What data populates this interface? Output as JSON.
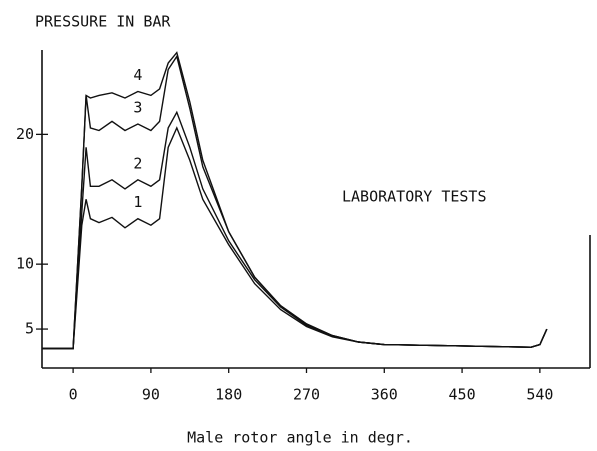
{
  "chart_data": {
    "type": "line",
    "title": "PRESSURE IN BAR",
    "annotation": "LABORATORY TESTS",
    "xlabel": "Male rotor angle in degr.",
    "x": [
      -36,
      -5,
      0,
      10,
      15,
      20,
      30,
      45,
      60,
      75,
      90,
      100,
      110,
      120,
      135,
      150,
      180,
      210,
      240,
      270,
      300,
      330,
      360,
      450,
      530,
      540,
      548
    ],
    "series": [
      {
        "name": "1",
        "color": "#111111",
        "values": [
          3.5,
          3.5,
          3.5,
          13,
          15,
          13.5,
          13.2,
          13.6,
          12.8,
          13.5,
          13,
          13.5,
          19,
          20.5,
          18,
          15,
          11.5,
          8.5,
          6.5,
          5.2,
          4.4,
          4,
          3.8,
          3.7,
          3.6,
          3.8,
          5
        ]
      },
      {
        "name": "2",
        "color": "#111111",
        "values": [
          3.5,
          3.5,
          3.5,
          14,
          19,
          16,
          16,
          16.5,
          15.8,
          16.5,
          16,
          16.5,
          20.5,
          21.7,
          19,
          15.8,
          11.8,
          8.8,
          6.7,
          5.3,
          4.5,
          4,
          3.8,
          3.7,
          3.6,
          3.8,
          5
        ]
      },
      {
        "name": "3",
        "color": "#111111",
        "values": [
          3.5,
          3.5,
          3.5,
          16,
          23,
          20.5,
          20.3,
          21,
          20.3,
          20.8,
          20.3,
          21,
          25,
          26,
          22,
          17.5,
          12.5,
          9,
          6.8,
          5.4,
          4.5,
          4,
          3.8,
          3.7,
          3.6,
          3.8,
          5
        ]
      },
      {
        "name": "4",
        "color": "#111111",
        "values": [
          3.5,
          3.5,
          3.5,
          16,
          23,
          22.8,
          23,
          23.2,
          22.8,
          23.3,
          23,
          23.5,
          25.5,
          26.3,
          22.5,
          18,
          12.5,
          9,
          6.8,
          5.4,
          4.5,
          4,
          3.8,
          3.7,
          3.6,
          3.8,
          5
        ]
      }
    ],
    "xlim": [
      -36,
      598
    ],
    "xticks": [
      0,
      90,
      180,
      270,
      360,
      450,
      540
    ],
    "ylim": [
      2,
      26.5
    ],
    "yticks": [
      5,
      10,
      20
    ]
  }
}
